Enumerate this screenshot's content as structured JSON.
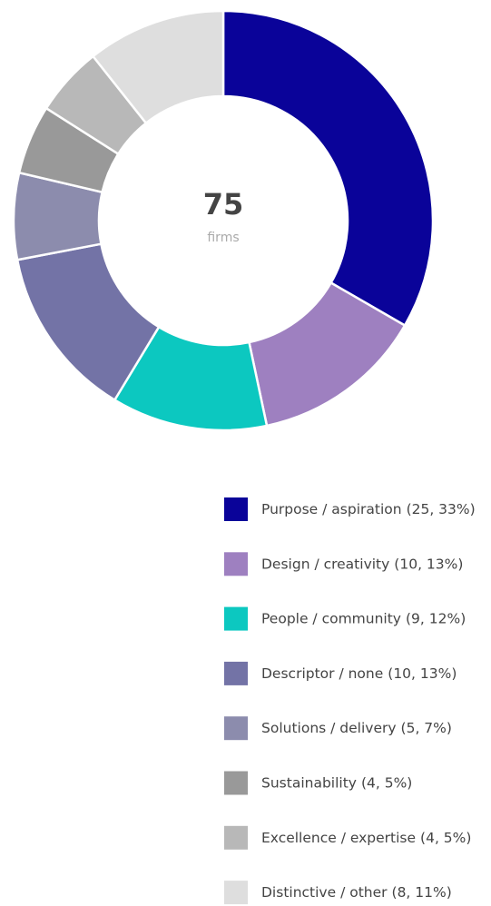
{
  "chart_data": {
    "type": "donut",
    "total": 75,
    "total_label": "firms",
    "categories": [
      "Purpose / aspiration",
      "Design / creativity",
      "People / community",
      "Descriptor / none",
      "Solutions / delivery",
      "Sustainability",
      "Excellence / expertise",
      "Distinctive / other"
    ],
    "values": [
      25,
      10,
      9,
      10,
      5,
      4,
      4,
      8
    ],
    "value_labels": [
      "(25, 33%)",
      "(10, 13%)",
      "(9, 12%)",
      "(10, 13%)",
      "(5, 7%)",
      "(4, 5%)",
      "(4, 5%)",
      "(8, 11%)"
    ],
    "colors": [
      "#0a0399",
      "#9e80c0",
      "#0cc8c0",
      "#7373a6",
      "#8c8cad",
      "#999999",
      "#b8b8b8",
      "#dedede"
    ]
  }
}
